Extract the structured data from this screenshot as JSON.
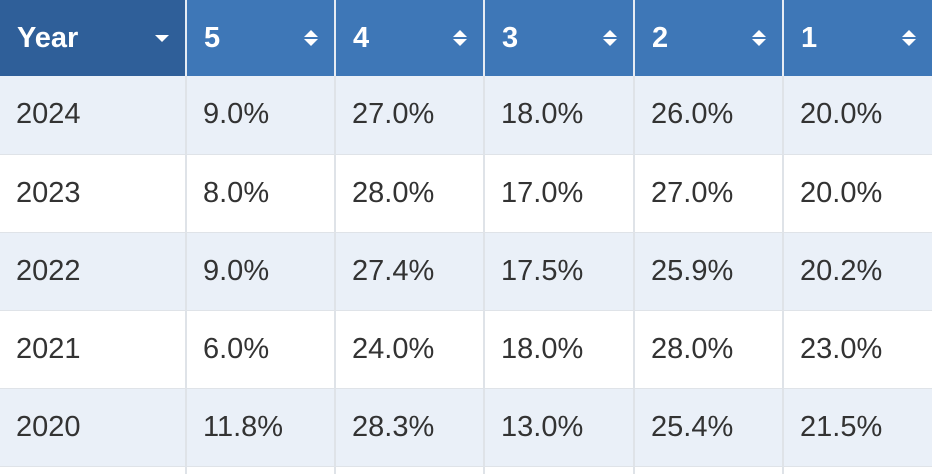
{
  "columns": [
    {
      "label": "Year"
    },
    {
      "label": "5"
    },
    {
      "label": "4"
    },
    {
      "label": "3"
    },
    {
      "label": "2"
    },
    {
      "label": "1"
    }
  ],
  "rows": [
    [
      "2024",
      "9.0%",
      "27.0%",
      "18.0%",
      "26.0%",
      "20.0%"
    ],
    [
      "2023",
      "8.0%",
      "28.0%",
      "17.0%",
      "27.0%",
      "20.0%"
    ],
    [
      "2022",
      "9.0%",
      "27.4%",
      "17.5%",
      "25.9%",
      "20.2%"
    ],
    [
      "2021",
      "6.0%",
      "24.0%",
      "18.0%",
      "28.0%",
      "23.0%"
    ],
    [
      "2020",
      "11.8%",
      "28.3%",
      "13.0%",
      "25.4%",
      "21.5%"
    ]
  ],
  "colors": {
    "header_bg": "#3e77b7",
    "header_active_bg": "#2f5f99",
    "row_alt_bg": "#eaf0f8"
  },
  "icons": {
    "year_header": "chevron-down-icon",
    "value_header": "sort-icon"
  }
}
